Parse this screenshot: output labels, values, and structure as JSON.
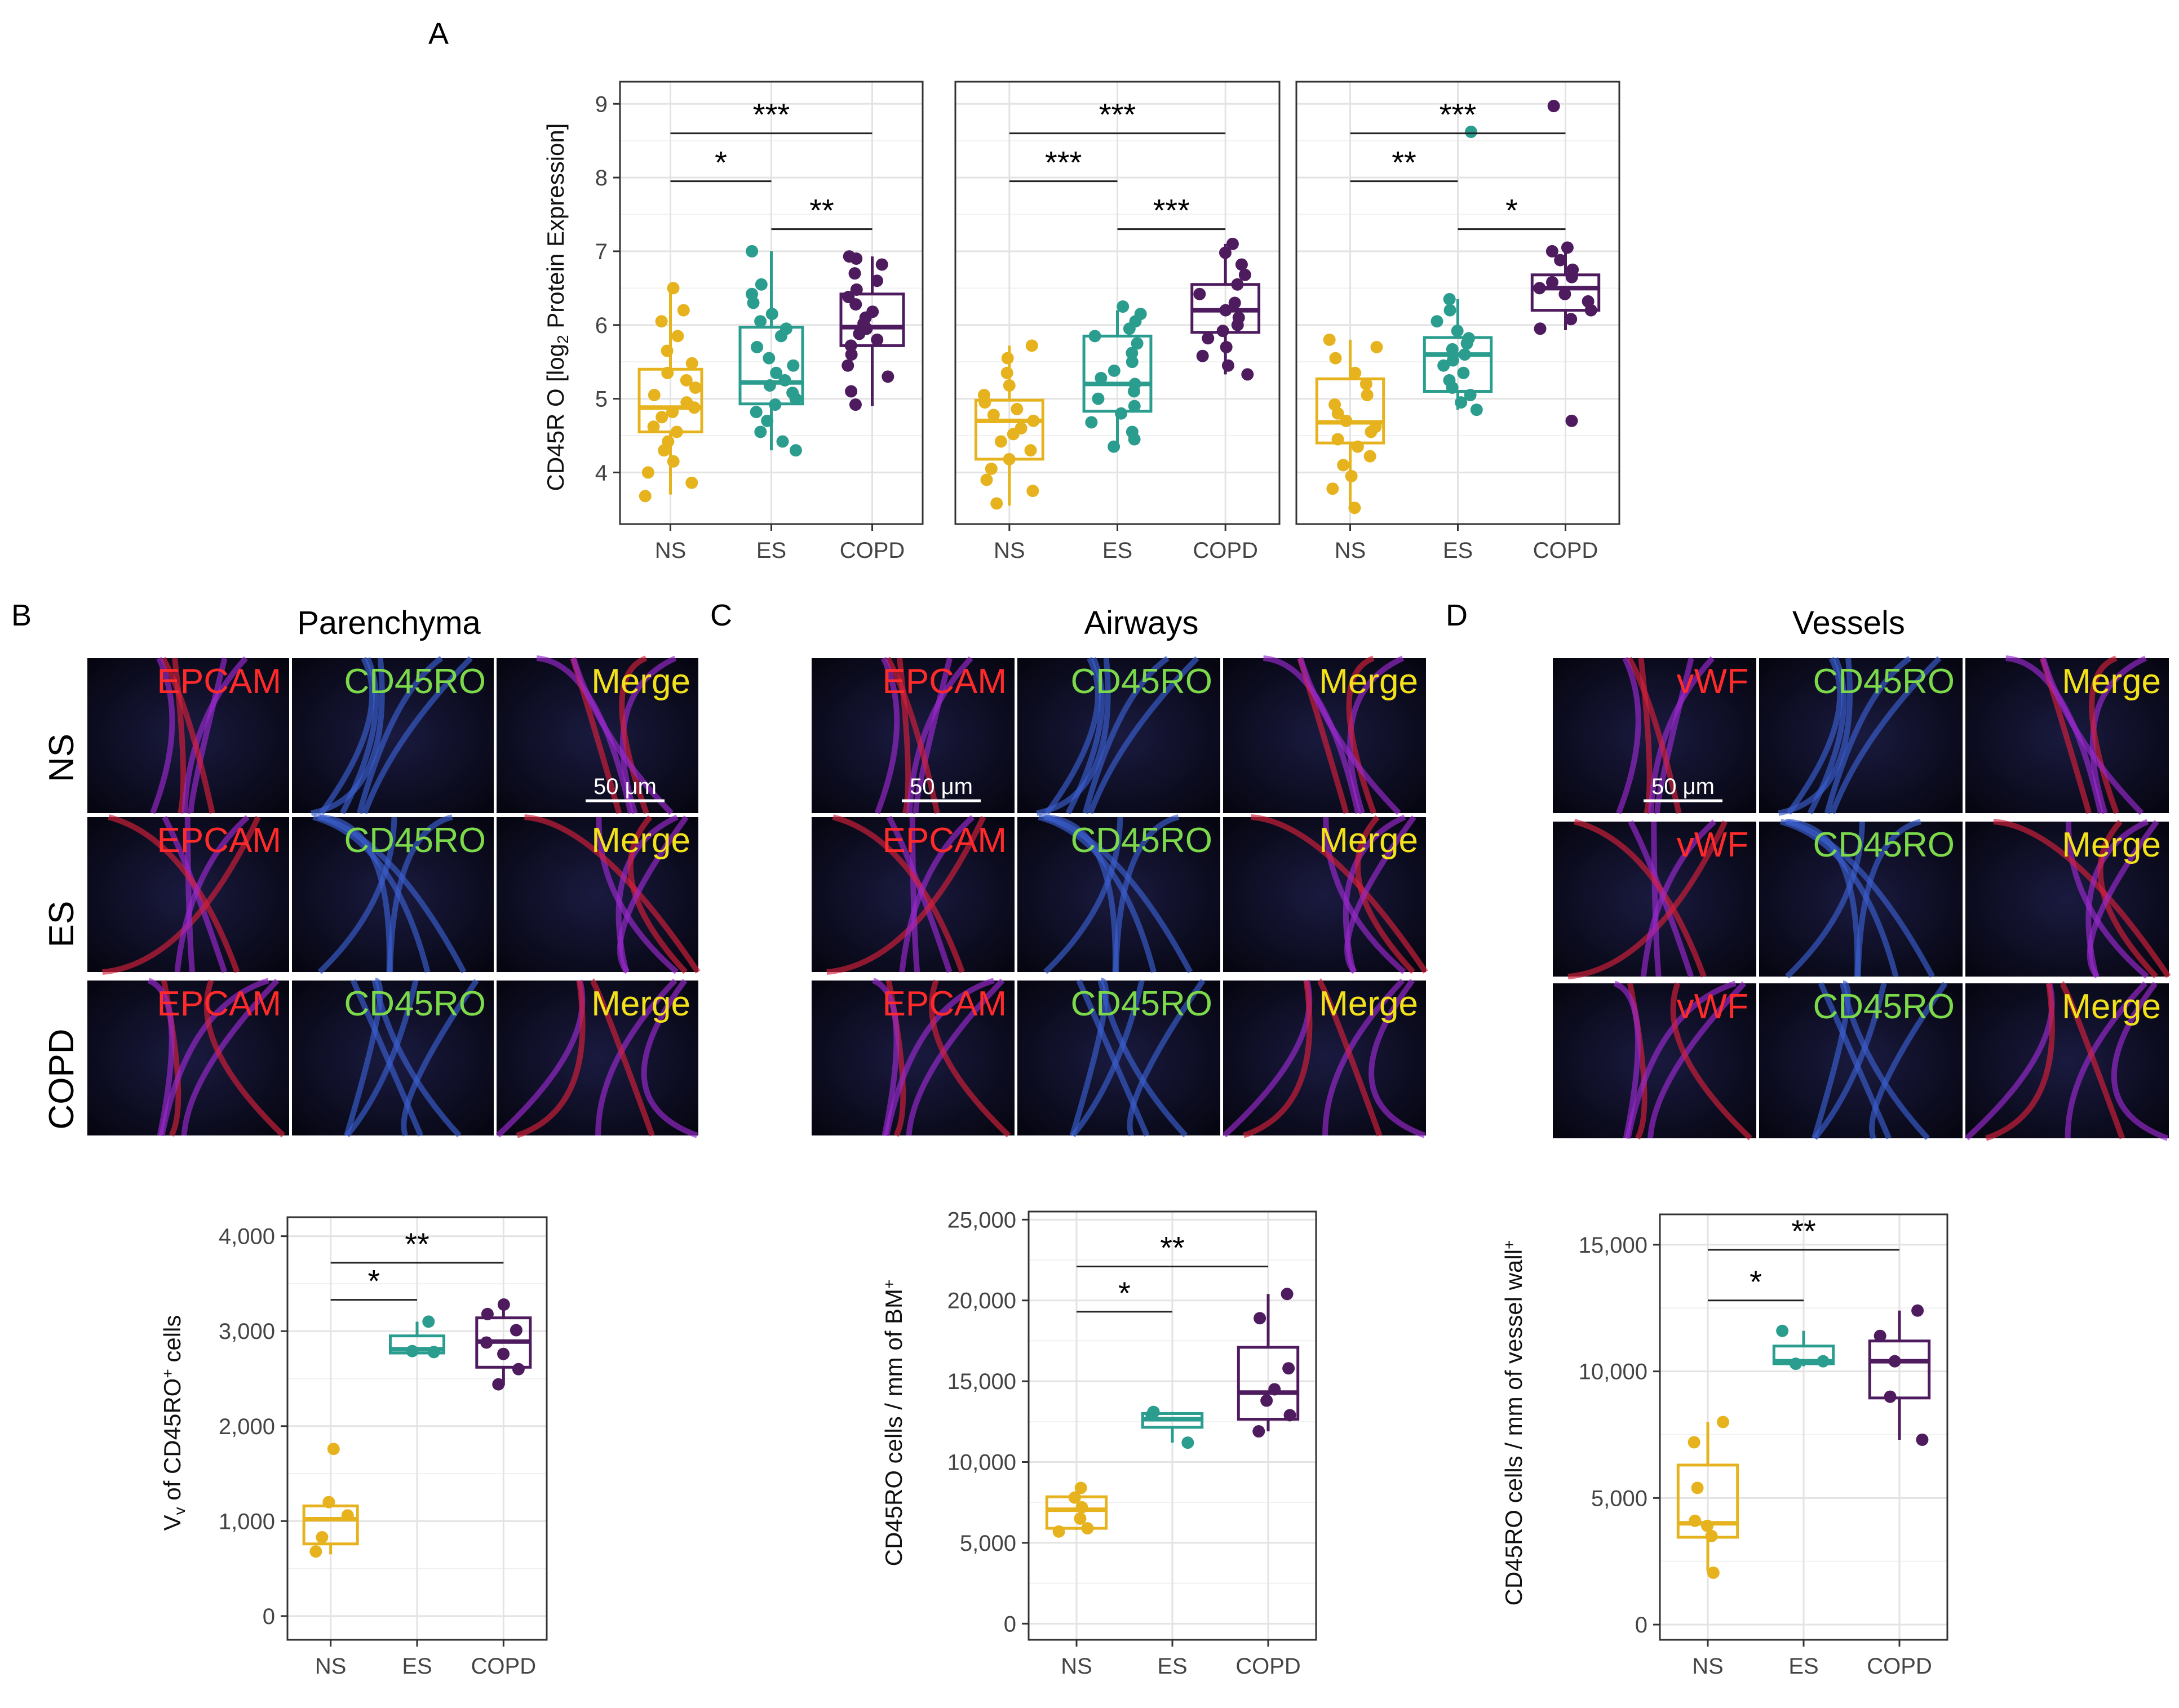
{
  "colors": {
    "NS": "#E6B31E",
    "ES": "#2A9D8F",
    "COPD": "#4E1B5E"
  },
  "panel_letters": {
    "A": "A",
    "B": "B",
    "C": "C",
    "D": "D"
  },
  "regions": {
    "parenchyma": "Parenchyma",
    "airways": "Airways",
    "vessels": "Vessels"
  },
  "row_labels": [
    "NS",
    "ES",
    "COPD"
  ],
  "tile_labels": {
    "epcam": "EPCAM",
    "vwf": "vWF",
    "cd45ro": "CD45RO",
    "merge": "Merge"
  },
  "scale_bar": "50 μm",
  "chart_data": [
    {
      "id": "A1",
      "type": "box",
      "ylabel_main": "CD45R O [log",
      "ylabel_sub": "2",
      "ylabel_tail": " Protein Expression]",
      "categories": [
        "NS",
        "ES",
        "COPD"
      ],
      "ylim": [
        3.3,
        9.3
      ],
      "yticks": [
        4,
        5,
        6,
        7,
        8,
        9
      ],
      "ytick_labels": [
        "4",
        "5",
        "6",
        "7",
        "8",
        "9"
      ],
      "boxes": [
        {
          "q1": 4.55,
          "median": 4.88,
          "q3": 5.4,
          "lo": 3.7,
          "hi": 6.5
        },
        {
          "q1": 4.93,
          "median": 5.22,
          "q3": 5.97,
          "lo": 4.3,
          "hi": 7.0
        },
        {
          "q1": 5.72,
          "median": 5.97,
          "q3": 6.42,
          "lo": 4.9,
          "hi": 6.93
        }
      ],
      "points": [
        [
          3.68,
          3.86,
          4.0,
          4.15,
          4.3,
          4.42,
          4.55,
          4.62,
          4.75,
          4.82,
          4.88,
          4.95,
          5.05,
          5.15,
          5.25,
          5.35,
          5.48,
          5.65,
          5.85,
          6.05,
          6.2,
          6.5
        ],
        [
          4.3,
          4.42,
          4.55,
          4.7,
          4.82,
          4.92,
          5.0,
          5.08,
          5.18,
          5.25,
          5.35,
          5.45,
          5.55,
          5.7,
          5.85,
          5.95,
          6.05,
          6.15,
          6.3,
          6.42,
          6.55,
          7.0
        ],
        [
          4.92,
          5.1,
          5.3,
          5.45,
          5.6,
          5.72,
          5.8,
          5.88,
          5.95,
          6.02,
          6.1,
          6.18,
          6.28,
          6.38,
          6.48,
          6.6,
          6.7,
          6.82,
          6.9,
          6.93
        ]
      ],
      "significance": [
        {
          "from": 0,
          "to": 1,
          "y": 7.95,
          "label": "*"
        },
        {
          "from": 0,
          "to": 2,
          "y": 8.6,
          "label": "***"
        },
        {
          "from": 1,
          "to": 2,
          "y": 7.3,
          "label": "**"
        }
      ]
    },
    {
      "id": "A2",
      "type": "box",
      "categories": [
        "NS",
        "ES",
        "COPD"
      ],
      "ylim": [
        3.3,
        9.3
      ],
      "yticks": [
        4,
        5,
        6,
        7,
        8,
        9
      ],
      "boxes": [
        {
          "q1": 4.18,
          "median": 4.7,
          "q3": 4.98,
          "lo": 3.55,
          "hi": 5.72
        },
        {
          "q1": 4.83,
          "median": 5.2,
          "q3": 5.85,
          "lo": 4.35,
          "hi": 6.2
        },
        {
          "q1": 5.9,
          "median": 6.2,
          "q3": 6.55,
          "lo": 5.33,
          "hi": 7.1
        }
      ],
      "points": [
        [
          3.58,
          3.75,
          3.9,
          4.05,
          4.18,
          4.3,
          4.42,
          4.52,
          4.6,
          4.7,
          4.78,
          4.86,
          4.95,
          5.05,
          5.18,
          5.35,
          5.55,
          5.72
        ],
        [
          4.35,
          4.45,
          4.55,
          4.68,
          4.8,
          4.9,
          5.0,
          5.1,
          5.2,
          5.28,
          5.38,
          5.5,
          5.62,
          5.75,
          5.85,
          5.95,
          6.05,
          6.15,
          6.25
        ],
        [
          5.33,
          5.45,
          5.58,
          5.7,
          5.82,
          5.92,
          6.0,
          6.1,
          6.2,
          6.3,
          6.42,
          6.55,
          6.68,
          6.82,
          6.98,
          7.1
        ]
      ],
      "significance": [
        {
          "from": 0,
          "to": 1,
          "y": 7.95,
          "label": "***"
        },
        {
          "from": 0,
          "to": 2,
          "y": 8.6,
          "label": "***"
        },
        {
          "from": 1,
          "to": 2,
          "y": 7.3,
          "label": "***"
        }
      ]
    },
    {
      "id": "A3",
      "type": "box",
      "categories": [
        "NS",
        "ES",
        "COPD"
      ],
      "ylim": [
        3.3,
        9.3
      ],
      "yticks": [
        4,
        5,
        6,
        7,
        8,
        9
      ],
      "boxes": [
        {
          "q1": 4.4,
          "median": 4.68,
          "q3": 5.27,
          "lo": 3.5,
          "hi": 5.8
        },
        {
          "q1": 5.1,
          "median": 5.6,
          "q3": 5.83,
          "lo": 4.85,
          "hi": 6.35
        },
        {
          "q1": 6.2,
          "median": 6.5,
          "q3": 6.68,
          "lo": 5.93,
          "hi": 7.05
        }
      ],
      "points": [
        [
          3.52,
          3.78,
          3.95,
          4.1,
          4.22,
          4.35,
          4.45,
          4.55,
          4.62,
          4.7,
          4.8,
          4.92,
          5.05,
          5.2,
          5.35,
          5.55,
          5.7,
          5.8
        ],
        [
          4.85,
          4.95,
          5.05,
          5.15,
          5.25,
          5.35,
          5.45,
          5.52,
          5.6,
          5.67,
          5.75,
          5.82,
          5.92,
          6.05,
          6.2,
          6.35,
          8.62
        ],
        [
          4.7,
          5.95,
          6.08,
          6.2,
          6.32,
          6.42,
          6.5,
          6.58,
          6.65,
          6.75,
          6.88,
          7.0,
          7.05,
          8.97
        ]
      ],
      "significance": [
        {
          "from": 0,
          "to": 1,
          "y": 7.95,
          "label": "**"
        },
        {
          "from": 0,
          "to": 2,
          "y": 8.6,
          "label": "***"
        },
        {
          "from": 1,
          "to": 2,
          "y": 7.3,
          "label": "*"
        }
      ]
    },
    {
      "id": "B",
      "type": "box",
      "ylabel_main": "V",
      "ylabel_sub": "v",
      "ylabel_tail": " of CD45RO",
      "ylabel_sup": "+",
      "ylabel_end": " cells",
      "categories": [
        "NS",
        "ES",
        "COPD"
      ],
      "ylim": [
        -250,
        4200
      ],
      "yticks": [
        0,
        1000,
        2000,
        3000,
        4000
      ],
      "ytick_labels": [
        "0",
        "1,000",
        "2,000",
        "3,000",
        "4,000"
      ],
      "boxes": [
        {
          "q1": 760,
          "median": 1020,
          "q3": 1160,
          "lo": 650,
          "hi": 1200
        },
        {
          "q1": 2770,
          "median": 2810,
          "q3": 2950,
          "lo": 2760,
          "hi": 3100
        },
        {
          "q1": 2620,
          "median": 2890,
          "q3": 3140,
          "lo": 2430,
          "hi": 3280
        }
      ],
      "points": [
        [
          680,
          830,
          1060,
          1200,
          1760
        ],
        [
          2780,
          2790,
          3100
        ],
        [
          2440,
          2600,
          2760,
          2880,
          3010,
          3180,
          3280
        ]
      ],
      "significance": [
        {
          "from": 0,
          "to": 1,
          "y": 3330,
          "label": "*"
        },
        {
          "from": 0,
          "to": 2,
          "y": 3720,
          "label": "**"
        }
      ]
    },
    {
      "id": "C",
      "type": "box",
      "ylabel_main": "CD45RO",
      "ylabel_sup": "+",
      "ylabel_tail": " cells / mm of BM",
      "categories": [
        "NS",
        "ES",
        "COPD"
      ],
      "ylim": [
        -1000,
        25500
      ],
      "yticks": [
        0,
        5000,
        10000,
        15000,
        20000,
        25000
      ],
      "ytick_labels": [
        "0",
        "5,000",
        "10,000",
        "15,000",
        "20,000",
        "25,000"
      ],
      "boxes": [
        {
          "q1": 5900,
          "median": 7050,
          "q3": 7850,
          "lo": 5800,
          "hi": 8500
        },
        {
          "q1": 12150,
          "median": 12650,
          "q3": 13000,
          "lo": 11200,
          "hi": 13100
        },
        {
          "q1": 12650,
          "median": 14300,
          "q3": 17100,
          "lo": 11900,
          "hi": 20400
        }
      ],
      "points": [
        [
          5700,
          5900,
          6500,
          7200,
          7800,
          8400
        ],
        [
          11200,
          12900,
          13100
        ],
        [
          11900,
          12900,
          13800,
          14500,
          15800,
          18900,
          20400
        ]
      ],
      "significance": [
        {
          "from": 0,
          "to": 1,
          "y": 19300,
          "label": "*"
        },
        {
          "from": 0,
          "to": 2,
          "y": 22100,
          "label": "**"
        }
      ]
    },
    {
      "id": "D",
      "type": "box",
      "ylabel_main": "CD45RO",
      "ylabel_sup": "+",
      "ylabel_tail": " cells / mm of vessel wall",
      "categories": [
        "NS",
        "ES",
        "COPD"
      ],
      "ylim": [
        -600,
        16200
      ],
      "yticks": [
        0,
        5000,
        10000,
        15000
      ],
      "ytick_labels": [
        "0",
        "5,000",
        "10,000",
        "15,000"
      ],
      "boxes": [
        {
          "q1": 3450,
          "median": 4000,
          "q3": 6300,
          "lo": 2100,
          "hi": 8000
        },
        {
          "q1": 10300,
          "median": 10400,
          "q3": 11000,
          "lo": 10200,
          "hi": 11600
        },
        {
          "q1": 8950,
          "median": 10400,
          "q3": 11200,
          "lo": 7300,
          "hi": 12400
        }
      ],
      "points": [
        [
          2050,
          3500,
          3900,
          4100,
          5400,
          7200,
          8000
        ],
        [
          10300,
          10400,
          11600
        ],
        [
          7300,
          9000,
          10400,
          11400,
          12400
        ]
      ],
      "significance": [
        {
          "from": 0,
          "to": 1,
          "y": 12800,
          "label": "*"
        },
        {
          "from": 0,
          "to": 2,
          "y": 14800,
          "label": "**"
        }
      ]
    }
  ]
}
